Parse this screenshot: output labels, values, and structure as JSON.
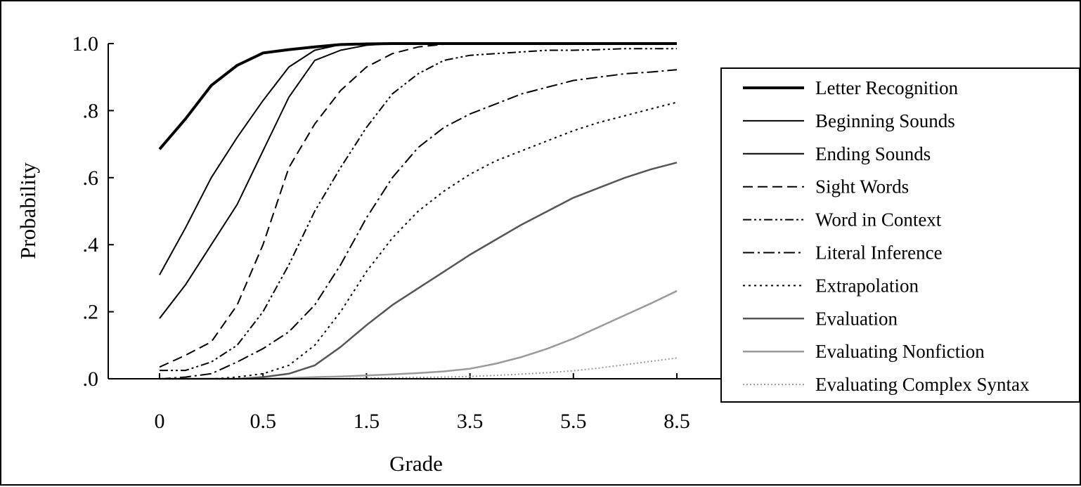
{
  "chart_data": {
    "type": "line",
    "title": "",
    "xlabel": "Grade",
    "ylabel": "Probability",
    "x_tick_labels": [
      "0",
      "0.5",
      "1.5",
      "3.5",
      "5.5",
      "8.5"
    ],
    "y_tick_labels": [
      ".0",
      ".2",
      ".4",
      ".6",
      ".8",
      "1.0"
    ],
    "y_tick_values": [
      0,
      0.2,
      0.4,
      0.6,
      0.8,
      1.0
    ],
    "ylim": [
      0,
      1
    ],
    "grid": false,
    "legend_position": "right",
    "x_note": "x values are positions on the grade axis; ticks at positions 0,1,2,3,4,5 are labelled 0, 0.5, 1.5, 3.5, 5.5, 8.5",
    "x": [
      0,
      0.25,
      0.5,
      0.75,
      1,
      1.25,
      1.5,
      1.75,
      2,
      2.25,
      2.5,
      2.75,
      3,
      3.25,
      3.5,
      3.75,
      4,
      4.25,
      4.5,
      4.75,
      5
    ],
    "series": [
      {
        "name": "Letter Recognition",
        "style": "bold",
        "values": [
          0.685,
          0.775,
          0.875,
          0.935,
          0.972,
          0.982,
          0.99,
          0.997,
          0.999,
          1.0,
          1.0,
          1.0,
          1.0,
          1.0,
          1.0,
          1.0,
          1.0,
          1.0,
          1.0,
          1.0,
          1.0
        ]
      },
      {
        "name": "Beginning Sounds",
        "style": "solid",
        "values": [
          0.31,
          0.45,
          0.6,
          0.72,
          0.83,
          0.93,
          0.98,
          0.997,
          1.0,
          1.0,
          1.0,
          1.0,
          1.0,
          1.0,
          1.0,
          1.0,
          1.0,
          1.0,
          1.0,
          1.0,
          1.0
        ]
      },
      {
        "name": "Ending Sounds",
        "style": "solid",
        "values": [
          0.18,
          0.28,
          0.4,
          0.52,
          0.68,
          0.84,
          0.95,
          0.98,
          0.995,
          1.0,
          1.0,
          1.0,
          1.0,
          1.0,
          1.0,
          1.0,
          1.0,
          1.0,
          1.0,
          1.0,
          1.0
        ]
      },
      {
        "name": "Sight Words",
        "style": "dash",
        "values": [
          0.035,
          0.07,
          0.11,
          0.22,
          0.4,
          0.63,
          0.76,
          0.86,
          0.93,
          0.97,
          0.99,
          0.998,
          1.0,
          1.0,
          1.0,
          1.0,
          1.0,
          1.0,
          1.0,
          1.0,
          1.0
        ]
      },
      {
        "name": "Word in Context",
        "style": "dashdotdot",
        "values": [
          0.025,
          0.025,
          0.05,
          0.1,
          0.2,
          0.34,
          0.5,
          0.63,
          0.75,
          0.85,
          0.91,
          0.95,
          0.965,
          0.97,
          0.975,
          0.98,
          0.98,
          0.982,
          0.985,
          0.985,
          0.985
        ]
      },
      {
        "name": "Literal Inference",
        "style": "dashdot",
        "values": [
          0.0,
          0.005,
          0.015,
          0.05,
          0.09,
          0.14,
          0.22,
          0.34,
          0.48,
          0.6,
          0.69,
          0.75,
          0.79,
          0.82,
          0.85,
          0.87,
          0.89,
          0.9,
          0.91,
          0.915,
          0.922
        ]
      },
      {
        "name": "Extrapolation",
        "style": "dotted",
        "values": [
          0.0,
          0.0,
          0.0,
          0.005,
          0.015,
          0.04,
          0.1,
          0.2,
          0.32,
          0.42,
          0.5,
          0.56,
          0.61,
          0.65,
          0.68,
          0.71,
          0.74,
          0.765,
          0.785,
          0.805,
          0.825
        ]
      },
      {
        "name": "Evaluation",
        "style": "grayline",
        "values": [
          0.0,
          0.0,
          0.0,
          0.0,
          0.005,
          0.015,
          0.04,
          0.095,
          0.16,
          0.22,
          0.27,
          0.32,
          0.37,
          0.415,
          0.46,
          0.5,
          0.54,
          0.57,
          0.6,
          0.625,
          0.645
        ]
      },
      {
        "name": "Evaluating Nonfiction",
        "style": "lightgray",
        "values": [
          0.0,
          0.0,
          0.0,
          0.0,
          0.0,
          0.002,
          0.005,
          0.007,
          0.01,
          0.013,
          0.017,
          0.022,
          0.03,
          0.045,
          0.065,
          0.09,
          0.12,
          0.155,
          0.19,
          0.225,
          0.262
        ]
      },
      {
        "name": "Evaluating Complex Syntax",
        "style": "lightdotted",
        "values": [
          0.0,
          0.0,
          0.0,
          0.0,
          0.0,
          0.0,
          0.0,
          0.0,
          0.002,
          0.003,
          0.004,
          0.005,
          0.007,
          0.01,
          0.014,
          0.018,
          0.024,
          0.032,
          0.042,
          0.052,
          0.062
        ]
      }
    ],
    "colors": {
      "main": "#000000",
      "gray": "#555555",
      "light_gray": "#9a9a9a"
    }
  }
}
